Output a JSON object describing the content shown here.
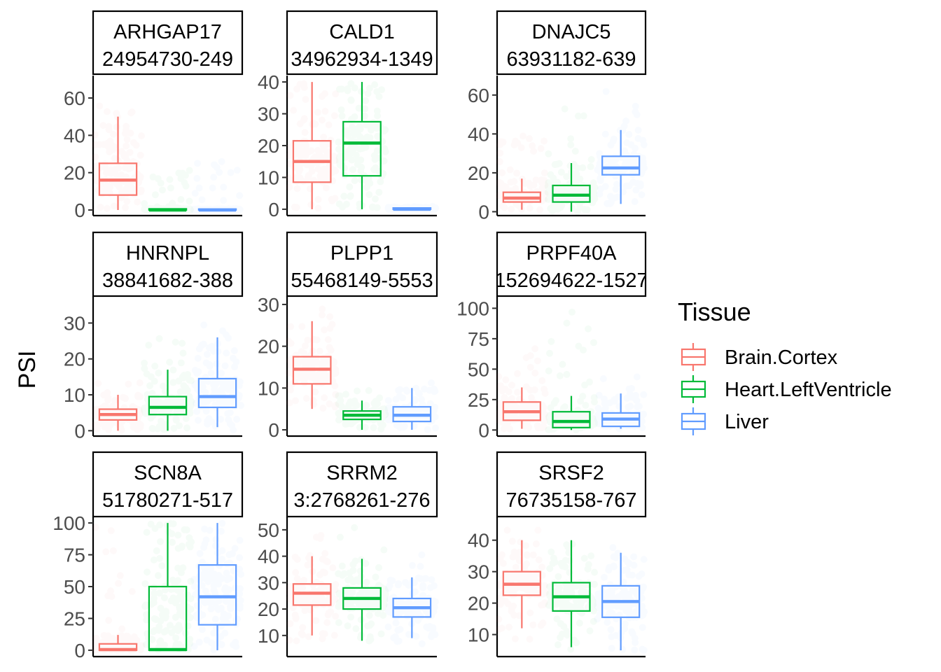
{
  "ylabel": "PSI",
  "legend": {
    "title": "Tissue",
    "entries": [
      {
        "name": "Brain.Cortex",
        "color": "#F8766D"
      },
      {
        "name": "Heart.LeftVentricle",
        "color": "#00BA38"
      },
      {
        "name": "Liver",
        "color": "#619CFF"
      }
    ]
  },
  "chart_data": [
    {
      "type": "boxplot",
      "gene": "ARHGAP17",
      "coord": "24954730-249",
      "ylim": [
        -3,
        72
      ],
      "yticks": [
        0,
        20,
        40,
        60
      ],
      "groups": [
        {
          "tissue": "Brain.Cortex",
          "lo": 0,
          "q1": 8,
          "median": 16,
          "q3": 25,
          "hi": 50,
          "jmin": 0,
          "jmax": 66
        },
        {
          "tissue": "Heart.LeftVentricle",
          "lo": 0,
          "q1": 0,
          "median": 0,
          "q3": 0.6,
          "hi": 0.8,
          "jmin": 0,
          "jmax": 22
        },
        {
          "tissue": "Liver",
          "lo": 0,
          "q1": 0,
          "median": 0,
          "q3": 0.5,
          "hi": 0.7,
          "jmin": 0,
          "jmax": 27
        }
      ]
    },
    {
      "type": "boxplot",
      "gene": "CALD1",
      "coord": "34962934-1349",
      "ylim": [
        -2,
        42
      ],
      "yticks": [
        0,
        10,
        20,
        30,
        40
      ],
      "groups": [
        {
          "tissue": "Brain.Cortex",
          "lo": 0,
          "q1": 8.5,
          "median": 15,
          "q3": 21.5,
          "hi": 40,
          "jmin": 0,
          "jmax": 40
        },
        {
          "tissue": "Heart.LeftVentricle",
          "lo": 0,
          "q1": 10.5,
          "median": 20.8,
          "q3": 27.5,
          "hi": 40,
          "jmin": 0,
          "jmax": 40
        },
        {
          "tissue": "Liver",
          "lo": 0,
          "q1": 0,
          "median": 0,
          "q3": 0.4,
          "hi": 0.6,
          "jmin": 0,
          "jmax": 1
        }
      ]
    },
    {
      "type": "boxplot",
      "gene": "DNAJC5",
      "coord": "63931182-639",
      "ylim": [
        -2,
        70
      ],
      "yticks": [
        0,
        20,
        40,
        60
      ],
      "groups": [
        {
          "tissue": "Brain.Cortex",
          "lo": 1,
          "q1": 5,
          "median": 7,
          "q3": 10,
          "hi": 17,
          "jmin": 0,
          "jmax": 40
        },
        {
          "tissue": "Heart.LeftVentricle",
          "lo": 0,
          "q1": 5,
          "median": 8.5,
          "q3": 13.5,
          "hi": 25,
          "jmin": 0,
          "jmax": 58
        },
        {
          "tissue": "Liver",
          "lo": 4,
          "q1": 19,
          "median": 22.5,
          "q3": 28.5,
          "hi": 42,
          "jmin": 4,
          "jmax": 62
        }
      ]
    },
    {
      "type": "boxplot",
      "gene": "HNRNPL",
      "coord": "38841682-388",
      "ylim": [
        -1.5,
        37.5
      ],
      "yticks": [
        0,
        10,
        20,
        30
      ],
      "groups": [
        {
          "tissue": "Brain.Cortex",
          "lo": 0,
          "q1": 3,
          "median": 4.5,
          "q3": 6,
          "hi": 10,
          "jmin": 0,
          "jmax": 16
        },
        {
          "tissue": "Heart.LeftVentricle",
          "lo": 0,
          "q1": 4.5,
          "median": 6.5,
          "q3": 9.5,
          "hi": 17,
          "jmin": 0,
          "jmax": 26
        },
        {
          "tissue": "Liver",
          "lo": 1,
          "q1": 6.5,
          "median": 9.5,
          "q3": 14.5,
          "hi": 26,
          "jmin": 0,
          "jmax": 36
        }
      ]
    },
    {
      "type": "boxplot",
      "gene": "PLPP1",
      "coord": "55468149-5553",
      "ylim": [
        -1.5,
        32
      ],
      "yticks": [
        0,
        10,
        20,
        30
      ],
      "groups": [
        {
          "tissue": "Brain.Cortex",
          "lo": 5,
          "q1": 11,
          "median": 14.5,
          "q3": 17.5,
          "hi": 26,
          "jmin": 5,
          "jmax": 30
        },
        {
          "tissue": "Heart.LeftVentricle",
          "lo": 0,
          "q1": 2.5,
          "median": 3.5,
          "q3": 4.5,
          "hi": 7,
          "jmin": 0,
          "jmax": 10
        },
        {
          "tissue": "Liver",
          "lo": 0,
          "q1": 2,
          "median": 3.5,
          "q3": 5.5,
          "hi": 10,
          "jmin": 0,
          "jmax": 12
        }
      ]
    },
    {
      "type": "boxplot",
      "gene": "PRPF40A",
      "coord": "152694622-1527",
      "ylim": [
        -5,
        110
      ],
      "yticks": [
        0,
        25,
        50,
        75,
        100
      ],
      "groups": [
        {
          "tissue": "Brain.Cortex",
          "lo": 1,
          "q1": 8,
          "median": 15,
          "q3": 23,
          "hi": 35,
          "jmin": 0,
          "jmax": 70
        },
        {
          "tissue": "Heart.LeftVentricle",
          "lo": 0,
          "q1": 2,
          "median": 7,
          "q3": 15,
          "hi": 28,
          "jmin": 0,
          "jmax": 100
        },
        {
          "tissue": "Liver",
          "lo": 1,
          "q1": 3,
          "median": 9,
          "q3": 14,
          "hi": 30,
          "jmin": 0,
          "jmax": 45
        }
      ]
    },
    {
      "type": "boxplot",
      "gene": "SCN8A",
      "coord": "51780271-517",
      "ylim": [
        -5,
        105
      ],
      "yticks": [
        0,
        25,
        50,
        75,
        100
      ],
      "groups": [
        {
          "tissue": "Brain.Cortex",
          "lo": 0,
          "q1": 0,
          "median": 0.5,
          "q3": 5,
          "hi": 12,
          "jmin": 0,
          "jmax": 100
        },
        {
          "tissue": "Heart.LeftVentricle",
          "lo": 0,
          "q1": 0,
          "median": 0.5,
          "q3": 50,
          "hi": 100,
          "jmin": 0,
          "jmax": 100
        },
        {
          "tissue": "Liver",
          "lo": 0,
          "q1": 20,
          "median": 42,
          "q3": 67,
          "hi": 100,
          "jmin": 0,
          "jmax": 100
        }
      ]
    },
    {
      "type": "boxplot",
      "gene": "SRRM2",
      "coord": "3:2768261-276",
      "ylim": [
        2,
        55
      ],
      "yticks": [
        10,
        20,
        30,
        40,
        50
      ],
      "groups": [
        {
          "tissue": "Brain.Cortex",
          "lo": 10,
          "q1": 21.5,
          "median": 26,
          "q3": 29.5,
          "hi": 40,
          "jmin": 7,
          "jmax": 48
        },
        {
          "tissue": "Heart.LeftVentricle",
          "lo": 8,
          "q1": 20,
          "median": 24,
          "q3": 28,
          "hi": 39,
          "jmin": 5,
          "jmax": 52
        },
        {
          "tissue": "Liver",
          "lo": 9,
          "q1": 17,
          "median": 20.5,
          "q3": 24,
          "hi": 32,
          "jmin": 6,
          "jmax": 44
        }
      ]
    },
    {
      "type": "boxplot",
      "gene": "SRSF2",
      "coord": "76735158-767",
      "ylim": [
        3,
        47.5
      ],
      "yticks": [
        10,
        20,
        30,
        40
      ],
      "groups": [
        {
          "tissue": "Brain.Cortex",
          "lo": 12,
          "q1": 22.5,
          "median": 26,
          "q3": 30,
          "hi": 40,
          "jmin": 8,
          "jmax": 44
        },
        {
          "tissue": "Heart.LeftVentricle",
          "lo": 6,
          "q1": 17.5,
          "median": 22,
          "q3": 26.5,
          "hi": 40,
          "jmin": 5,
          "jmax": 43
        },
        {
          "tissue": "Liver",
          "lo": 5,
          "q1": 15.5,
          "median": 20.5,
          "q3": 25.5,
          "hi": 36,
          "jmin": 4,
          "jmax": 40
        }
      ]
    }
  ]
}
